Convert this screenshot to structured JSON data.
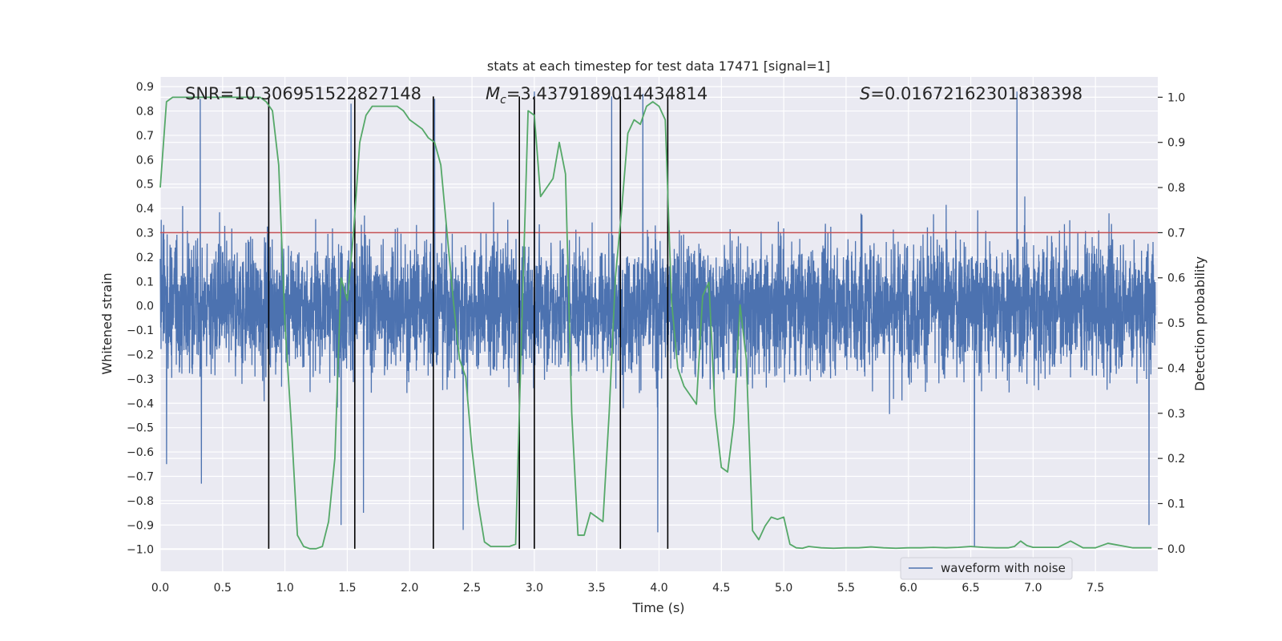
{
  "chart_data": {
    "type": "line",
    "title": "stats at each timestep for test data 17471 [signal=1]",
    "xlabel": "Time (s)",
    "ylabel_left": "Whitened strain",
    "ylabel_right": "Detection probability",
    "xlim": [
      0.0,
      8.0
    ],
    "ylim_left": [
      -1.09,
      0.94
    ],
    "ylim_right": [
      -0.05,
      1.045
    ],
    "x_ticks": [
      "0.0",
      "0.5",
      "1.0",
      "1.5",
      "2.0",
      "2.5",
      "3.0",
      "3.5",
      "4.0",
      "4.5",
      "5.0",
      "5.5",
      "6.0",
      "6.5",
      "7.0",
      "7.5"
    ],
    "y_left_ticks": [
      "0.9",
      "0.8",
      "0.7",
      "0.6",
      "0.5",
      "0.4",
      "0.3",
      "0.2",
      "0.1",
      "0.0",
      "−0.1",
      "−0.2",
      "−0.3",
      "−0.4",
      "−0.5",
      "−0.6",
      "−0.7",
      "−0.8",
      "−0.9",
      "−1.0"
    ],
    "y_right_ticks": [
      "1.0",
      "0.9",
      "0.8",
      "0.7",
      "0.6",
      "0.5",
      "0.4",
      "0.3",
      "0.2",
      "0.1",
      "0.0"
    ],
    "annotations": {
      "snr": "SNR=10.306951522827148",
      "mc_symbol": "M",
      "mc_sub": "c",
      "mc_value": "=3.4379189014434814",
      "s_symbol": "S",
      "s_value": "=0.016721623018383​98"
    },
    "threshold": {
      "value": 0.7,
      "color": "#c44e52"
    },
    "vertical_lines": [
      0.87,
      1.56,
      2.19,
      2.88,
      3.0,
      3.69,
      4.07
    ],
    "waveform": {
      "name": "waveform with noise",
      "color": "#4c72b0",
      "t_range": [
        0.0,
        7.98
      ],
      "typical_amplitude": 0.3,
      "peak_spikes": [
        {
          "t": 0.05,
          "y": 0.89
        },
        {
          "t": 0.32,
          "y": 0.85
        },
        {
          "t": 1.45,
          "y": 0.86
        },
        {
          "t": 1.53,
          "y": 0.83
        },
        {
          "t": 2.2,
          "y": 0.85
        },
        {
          "t": 3.0,
          "y": 0.88
        },
        {
          "t": 3.62,
          "y": 0.86
        },
        {
          "t": 3.87,
          "y": 0.87
        },
        {
          "t": 6.87,
          "y": 0.88
        },
        {
          "t": 0.05,
          "y": -0.65
        },
        {
          "t": 0.33,
          "y": -0.73
        },
        {
          "t": 1.45,
          "y": -0.9
        },
        {
          "t": 1.63,
          "y": -0.85
        },
        {
          "t": 2.43,
          "y": -0.92
        },
        {
          "t": 3.99,
          "y": -0.93
        },
        {
          "t": 4.07,
          "y": -0.89
        },
        {
          "t": 6.53,
          "y": -0.99
        },
        {
          "t": 7.93,
          "y": -0.9
        }
      ]
    },
    "detection_probability": {
      "color": "#55a868",
      "x": [
        0.0,
        0.05,
        0.1,
        0.2,
        0.3,
        0.4,
        0.5,
        0.6,
        0.7,
        0.8,
        0.85,
        0.9,
        0.95,
        1.0,
        1.05,
        1.1,
        1.15,
        1.2,
        1.25,
        1.3,
        1.35,
        1.4,
        1.45,
        1.5,
        1.55,
        1.6,
        1.65,
        1.7,
        1.75,
        1.8,
        1.85,
        1.9,
        1.95,
        2.0,
        2.05,
        2.1,
        2.15,
        2.2,
        2.25,
        2.3,
        2.35,
        2.4,
        2.45,
        2.5,
        2.55,
        2.6,
        2.65,
        2.7,
        2.75,
        2.8,
        2.85,
        2.9,
        2.95,
        3.0,
        3.05,
        3.1,
        3.15,
        3.2,
        3.25,
        3.3,
        3.35,
        3.4,
        3.45,
        3.5,
        3.55,
        3.6,
        3.65,
        3.7,
        3.75,
        3.8,
        3.85,
        3.9,
        3.95,
        4.0,
        4.05,
        4.1,
        4.15,
        4.2,
        4.25,
        4.3,
        4.35,
        4.4,
        4.45,
        4.5,
        4.55,
        4.6,
        4.65,
        4.7,
        4.75,
        4.8,
        4.85,
        4.9,
        4.95,
        5.0,
        5.05,
        5.1,
        5.15,
        5.2,
        5.3,
        5.4,
        5.5,
        5.6,
        5.7,
        5.8,
        5.9,
        6.0,
        6.1,
        6.2,
        6.3,
        6.4,
        6.5,
        6.6,
        6.7,
        6.8,
        6.85,
        6.9,
        6.95,
        7.0,
        7.1,
        7.2,
        7.3,
        7.4,
        7.5,
        7.6,
        7.7,
        7.8,
        7.9,
        7.95
      ],
      "y": [
        0.8,
        0.99,
        1.0,
        1.0,
        1.0,
        1.0,
        1.0,
        1.0,
        1.0,
        1.0,
        0.99,
        0.97,
        0.85,
        0.5,
        0.28,
        0.03,
        0.005,
        0.0,
        0.0,
        0.005,
        0.06,
        0.2,
        0.6,
        0.55,
        0.7,
        0.9,
        0.96,
        0.98,
        0.98,
        0.98,
        0.98,
        0.98,
        0.97,
        0.95,
        0.94,
        0.93,
        0.91,
        0.9,
        0.85,
        0.7,
        0.55,
        0.42,
        0.38,
        0.22,
        0.1,
        0.015,
        0.005,
        0.005,
        0.005,
        0.005,
        0.01,
        0.5,
        0.97,
        0.96,
        0.78,
        0.8,
        0.82,
        0.9,
        0.83,
        0.3,
        0.03,
        0.03,
        0.08,
        0.07,
        0.06,
        0.3,
        0.6,
        0.75,
        0.92,
        0.95,
        0.94,
        0.98,
        0.99,
        0.98,
        0.95,
        0.55,
        0.4,
        0.36,
        0.34,
        0.32,
        0.56,
        0.59,
        0.3,
        0.18,
        0.17,
        0.28,
        0.54,
        0.42,
        0.04,
        0.02,
        0.05,
        0.07,
        0.065,
        0.07,
        0.01,
        0.002,
        0.001,
        0.005,
        0.002,
        0.001,
        0.002,
        0.002,
        0.004,
        0.002,
        0.001,
        0.002,
        0.002,
        0.003,
        0.002,
        0.003,
        0.005,
        0.003,
        0.002,
        0.002,
        0.005,
        0.017,
        0.007,
        0.003,
        0.003,
        0.003,
        0.017,
        0.002,
        0.002,
        0.012,
        0.007,
        0.002,
        0.002,
        0.002
      ]
    },
    "legend": {
      "position": "lower-center-right",
      "entries": [
        "waveform with noise"
      ]
    },
    "grid": true
  }
}
